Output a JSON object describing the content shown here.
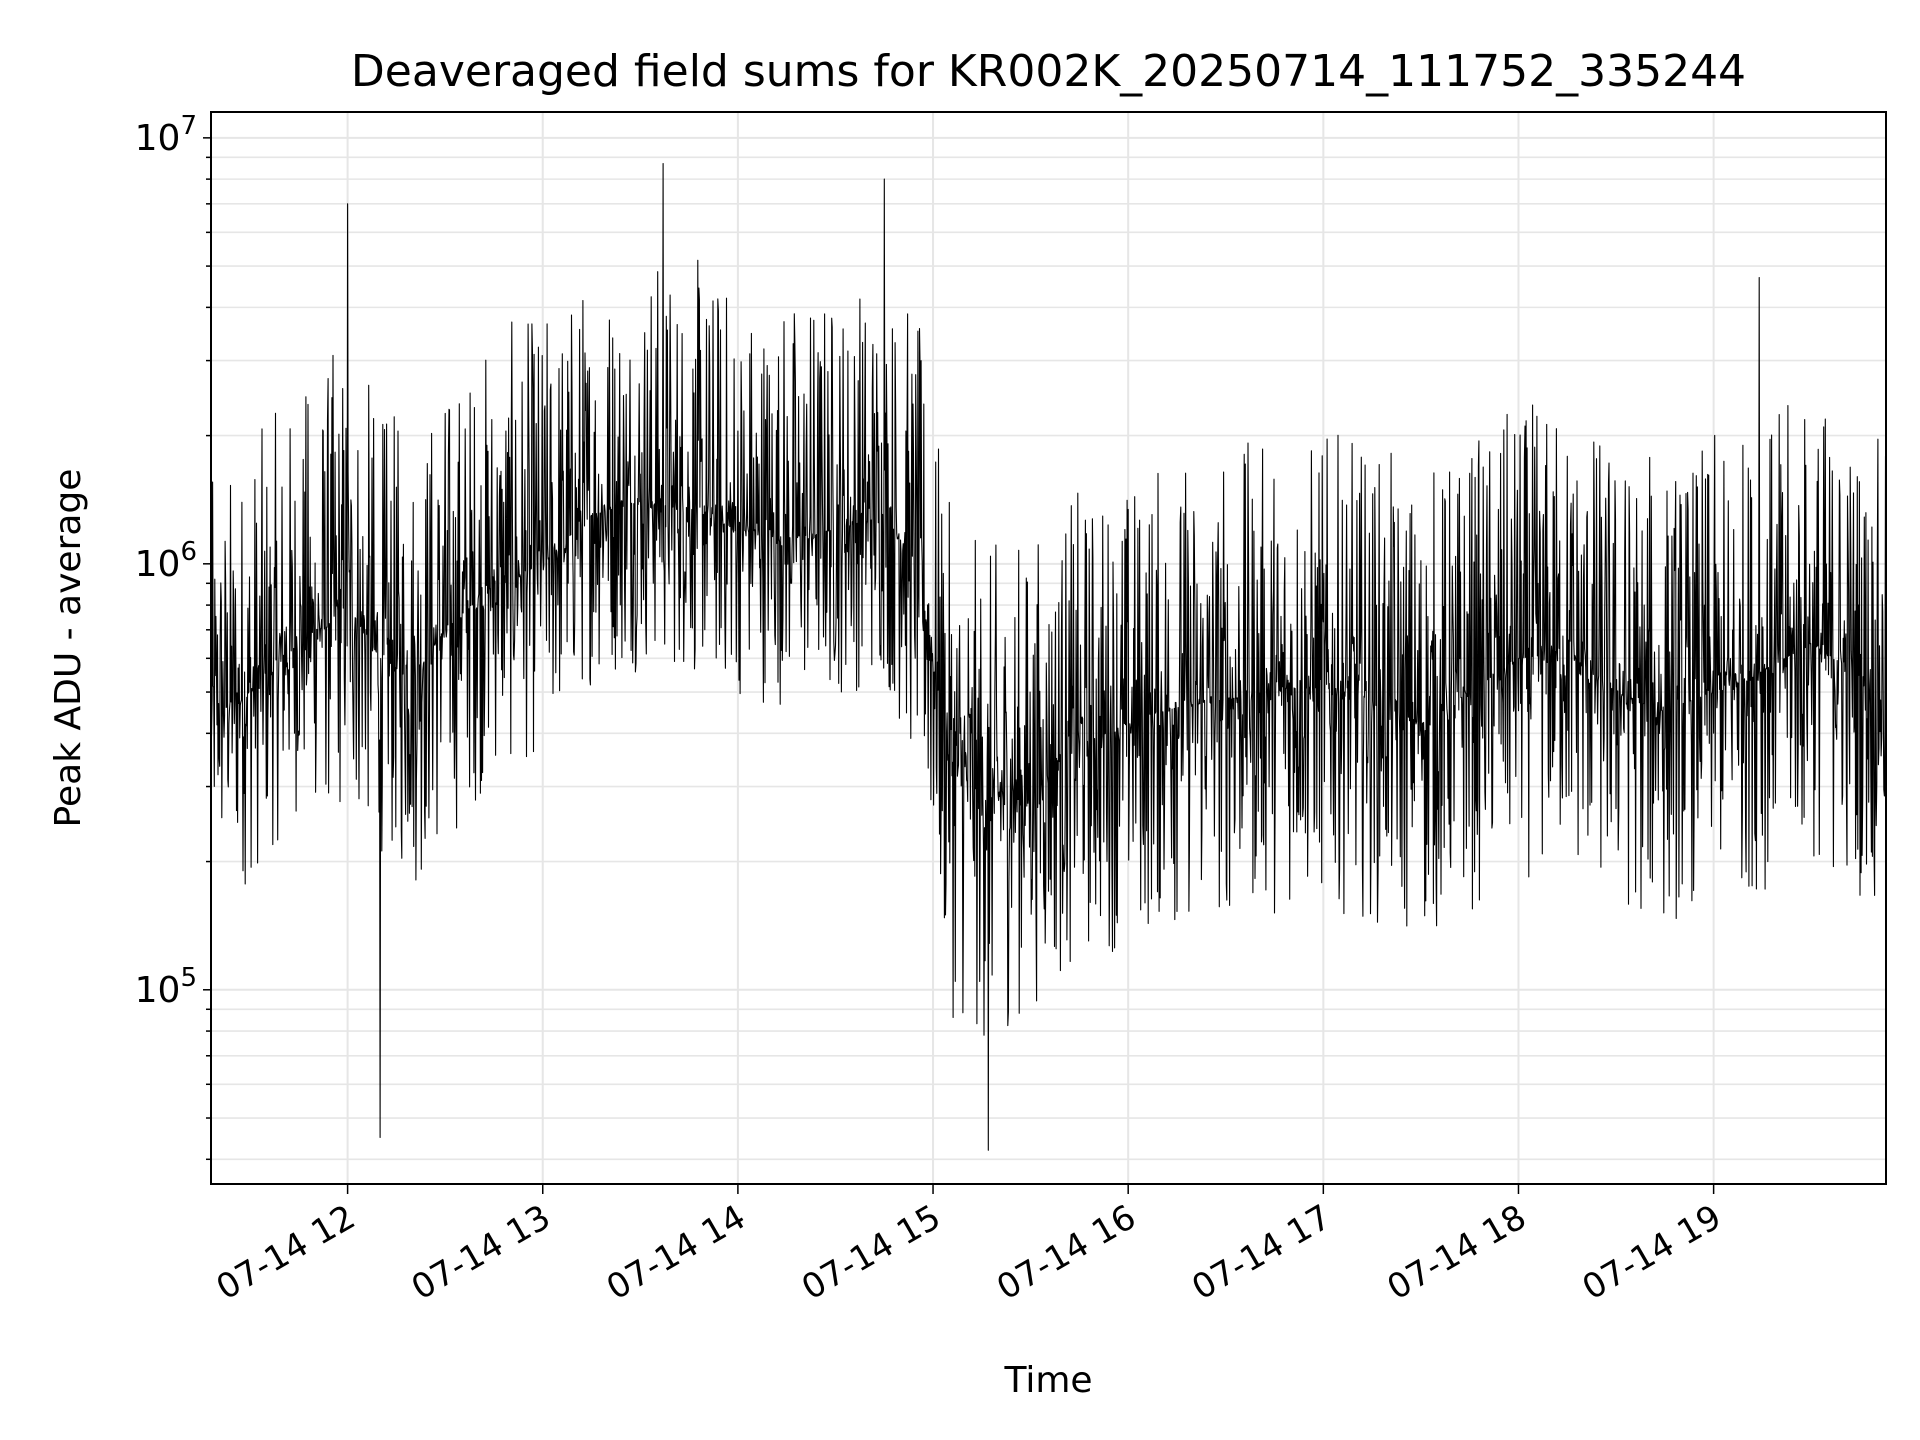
{
  "chart_data": {
    "type": "line",
    "title": "Deaveraged field sums for KR002K_20250714_111752_335244",
    "xlabel": "Time",
    "ylabel": "Peak ADU - average",
    "yscale": "log",
    "ylim": [
      35000,
      11500000
    ],
    "xlim": [
      "2025-07-14 11:18",
      "2025-07-14 19:53"
    ],
    "grid": true,
    "x_ticks": [
      {
        "t": "2025-07-14 12:00",
        "label": "07-14 12"
      },
      {
        "t": "2025-07-14 13:00",
        "label": "07-14 13"
      },
      {
        "t": "2025-07-14 14:00",
        "label": "07-14 14"
      },
      {
        "t": "2025-07-14 15:00",
        "label": "07-14 15"
      },
      {
        "t": "2025-07-14 16:00",
        "label": "07-14 16"
      },
      {
        "t": "2025-07-14 17:00",
        "label": "07-14 17"
      },
      {
        "t": "2025-07-14 18:00",
        "label": "07-14 18"
      },
      {
        "t": "2025-07-14 19:00",
        "label": "07-14 19"
      }
    ],
    "y_ticks": [
      {
        "value": 100000,
        "base": "10",
        "exp": "5"
      },
      {
        "value": 1000000,
        "base": "10",
        "exp": "6"
      },
      {
        "value": 10000000,
        "base": "10",
        "exp": "7"
      }
    ],
    "series": [
      {
        "color": "#000000",
        "x": [
          "2025-07-14 11:18",
          "2025-07-14 11:30",
          "2025-07-14 11:45",
          "2025-07-14 12:00",
          "2025-07-14 12:10",
          "2025-07-14 12:20",
          "2025-07-14 12:30",
          "2025-07-14 12:45",
          "2025-07-14 13:00",
          "2025-07-14 13:15",
          "2025-07-14 13:30",
          "2025-07-14 13:45",
          "2025-07-14 14:00",
          "2025-07-14 14:15",
          "2025-07-14 14:30",
          "2025-07-14 14:45",
          "2025-07-14 14:55",
          "2025-07-14 15:05",
          "2025-07-14 15:15",
          "2025-07-14 15:30",
          "2025-07-14 15:45",
          "2025-07-14 16:00",
          "2025-07-14 16:15",
          "2025-07-14 16:30",
          "2025-07-14 16:45",
          "2025-07-14 17:00",
          "2025-07-14 17:15",
          "2025-07-14 17:30",
          "2025-07-14 17:45",
          "2025-07-14 18:00",
          "2025-07-14 18:15",
          "2025-07-14 18:30",
          "2025-07-14 18:45",
          "2025-07-14 19:00",
          "2025-07-14 19:15",
          "2025-07-14 19:30",
          "2025-07-14 19:45",
          "2025-07-14 19:53"
        ],
        "y": [
          450000,
          500000,
          650000,
          800000,
          600000,
          550000,
          700000,
          900000,
          1000000,
          1300000,
          1400000,
          1350000,
          1200000,
          1150000,
          1200000,
          1300000,
          1000000,
          350000,
          280000,
          300000,
          380000,
          420000,
          460000,
          480000,
          500000,
          520000,
          480000,
          420000,
          500000,
          600000,
          620000,
          500000,
          450000,
          500000,
          560000,
          650000,
          550000,
          480000
        ],
        "band_low": [
          0.35,
          0.35,
          0.4,
          0.3,
          0.35,
          0.3,
          0.3,
          0.35,
          0.35,
          0.4,
          0.4,
          0.4,
          0.4,
          0.4,
          0.4,
          0.4,
          0.3,
          0.25,
          0.25,
          0.3,
          0.3,
          0.3,
          0.3,
          0.3,
          0.3,
          0.3,
          0.3,
          0.3,
          0.3,
          0.3,
          0.3,
          0.3,
          0.3,
          0.35,
          0.3,
          0.3,
          0.3,
          0.3
        ],
        "band_high": [
          3.5,
          4,
          4,
          4.5,
          4,
          4,
          4,
          4,
          4,
          4,
          4,
          4,
          4,
          4,
          4,
          4,
          4,
          4,
          4,
          4,
          4,
          4,
          4,
          4,
          4,
          4,
          4,
          4,
          4,
          4,
          4,
          4,
          4,
          4,
          4,
          4,
          4,
          4
        ],
        "sample_interval_seconds": 10,
        "notable_points": [
          {
            "t": "2025-07-14 12:00",
            "y": 7000000
          },
          {
            "t": "2025-07-14 12:10",
            "y": 45000
          },
          {
            "t": "2025-07-14 13:37",
            "y": 8700000
          },
          {
            "t": "2025-07-14 14:45",
            "y": 8000000
          },
          {
            "t": "2025-07-14 15:17",
            "y": 42000
          },
          {
            "t": "2025-07-14 19:14",
            "y": 4700000
          }
        ]
      }
    ]
  }
}
